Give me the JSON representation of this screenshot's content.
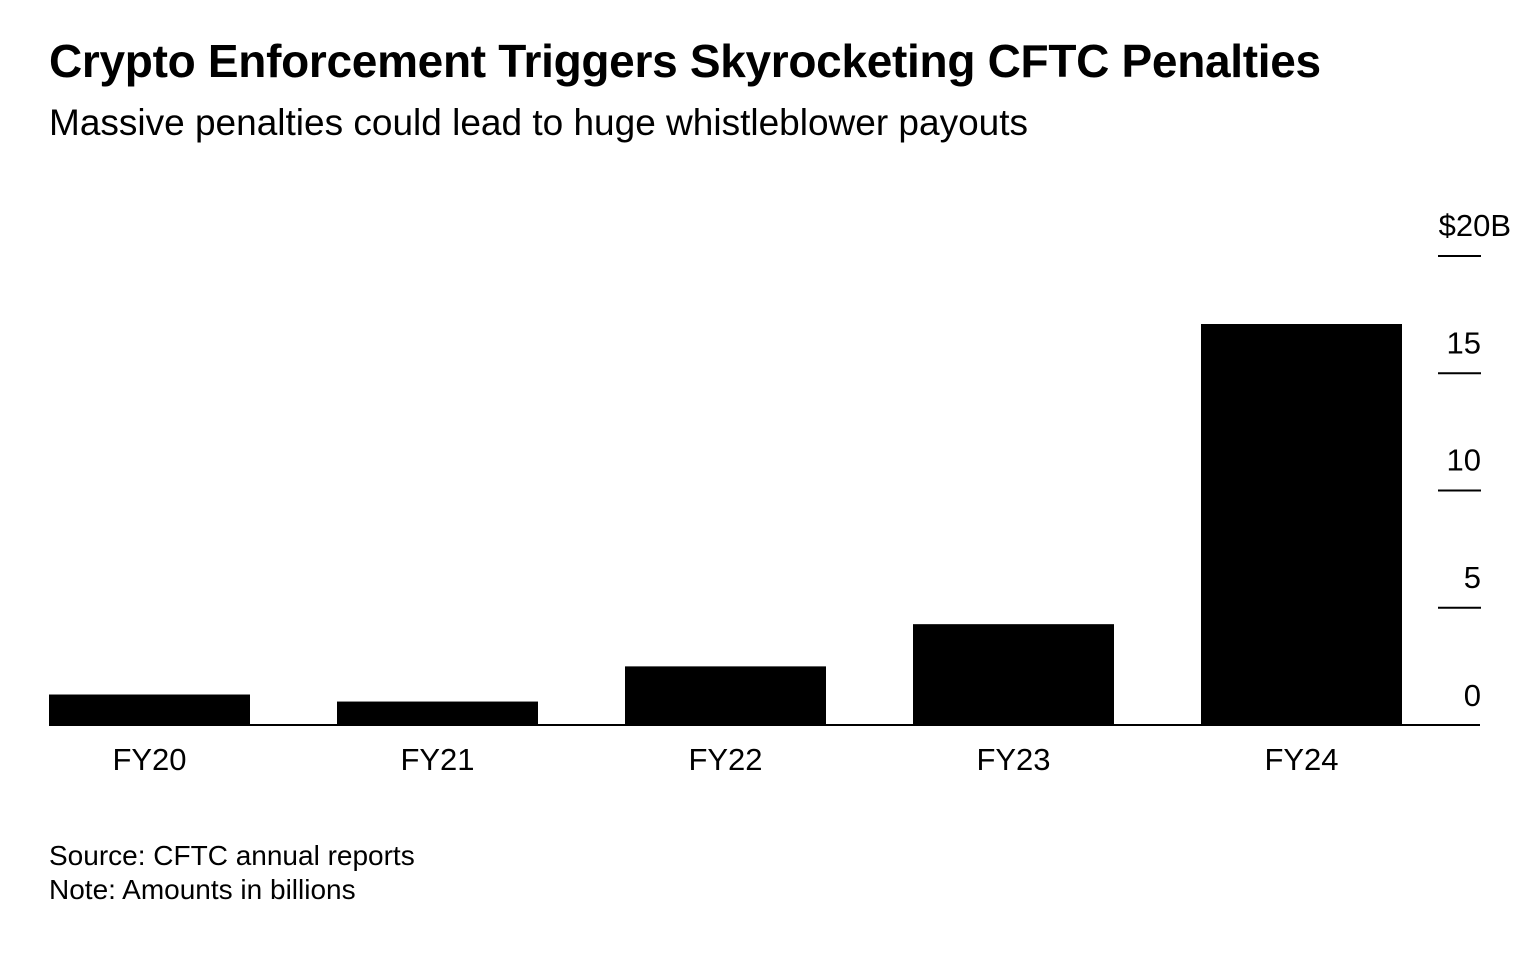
{
  "chart_data": {
    "type": "bar",
    "title": "Crypto Enforcement Triggers Skyrocketing CFTC Penalties",
    "subtitle": "Massive penalties could lead to huge whistleblower payouts",
    "categories": [
      "FY20",
      "FY21",
      "FY22",
      "FY23",
      "FY24"
    ],
    "values": [
      1.3,
      1.0,
      2.5,
      4.3,
      17.1
    ],
    "ylim": [
      0,
      20
    ],
    "yticks": [
      0,
      5,
      10,
      15,
      20
    ],
    "ytick_labels": [
      "0",
      "5",
      "10",
      "15",
      "$20B"
    ],
    "y_axis_side": "right",
    "xlabel": "",
    "ylabel": "",
    "bar_color": "#000000",
    "grid": false,
    "legend": "none"
  },
  "footer": {
    "source": "Source: CFTC annual reports",
    "note": "Note: Amounts in billions"
  }
}
